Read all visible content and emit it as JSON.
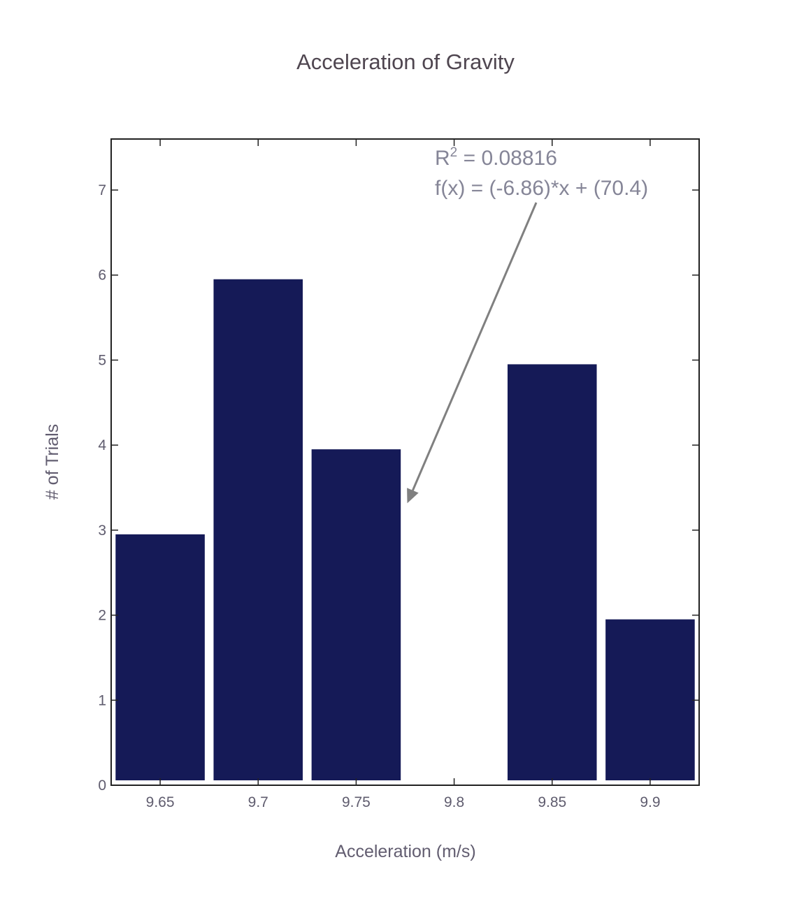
{
  "chart_data": {
    "type": "bar",
    "title": "Acceleration of Gravity",
    "xlabel": "Acceleration (m/s)",
    "ylabel": "# of Trials",
    "categories": [
      "9.65",
      "9.7",
      "9.75",
      "9.8",
      "9.85",
      "9.9"
    ],
    "x": [
      9.65,
      9.7,
      9.75,
      9.8,
      9.85,
      9.9
    ],
    "values": [
      3,
      6,
      4,
      0,
      5,
      2
    ],
    "xlim": [
      9.625,
      9.925
    ],
    "ylim": [
      0,
      7.6
    ],
    "yticks": [
      "0",
      "1",
      "2",
      "3",
      "4",
      "5",
      "6",
      "7"
    ],
    "grid": false,
    "bar_color": "#151a57",
    "annotation": {
      "r2_label": "R",
      "r2_sup": "2",
      "r2_value": " = 0.08816",
      "fit": "f(x) = (-6.86)*x + (70.4)",
      "arrow_target": {
        "x": 9.775,
        "y": 3.3
      }
    }
  }
}
